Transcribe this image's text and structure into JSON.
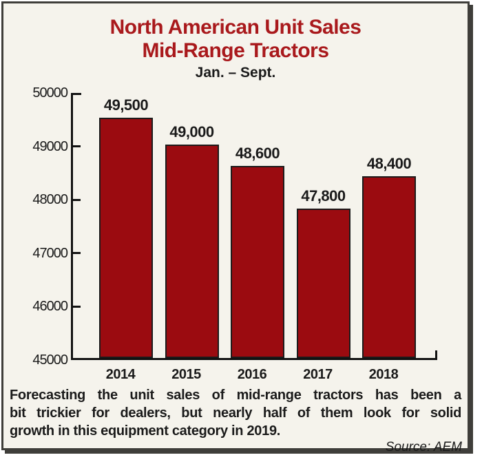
{
  "panel": {
    "background": "#f5f3ec",
    "border_color": "#3f3e3a"
  },
  "title": {
    "line1": "North American Unit Sales",
    "line2": "Mid-Range Tractors",
    "line3": "Jan. – Sept.",
    "accent_color": "#a9191c"
  },
  "chart_data": {
    "type": "bar",
    "title": "North American Unit Sales Mid-Range Tractors (Jan. – Sept.)",
    "categories": [
      "2014",
      "2015",
      "2016",
      "2017",
      "2018"
    ],
    "values": [
      49500,
      49000,
      48600,
      47800,
      48400
    ],
    "value_labels": [
      "49,500",
      "49,000",
      "48,600",
      "47,800",
      "48,400"
    ],
    "xlabel": "",
    "ylabel": "",
    "ylim": [
      45000,
      50000
    ],
    "yticks": [
      45000,
      46000,
      47000,
      48000,
      49000,
      50000
    ],
    "ytick_labels": [
      "45000",
      "46000",
      "47000",
      "48000",
      "49000",
      "50000"
    ],
    "grid": false,
    "legend": false,
    "bar_color": "#9b0b10",
    "bar_border_color": "#1b1b1b",
    "axis_color": "#111111",
    "label_color": "#1a1a1a"
  },
  "caption": {
    "lines": [
      "Forecasting the unit sales of mid-range tractors has been a",
      "bit trickier for dealers, but nearly half of them look for solid",
      "growth in this equipment category in 2019."
    ]
  },
  "source": "Source: AEM"
}
